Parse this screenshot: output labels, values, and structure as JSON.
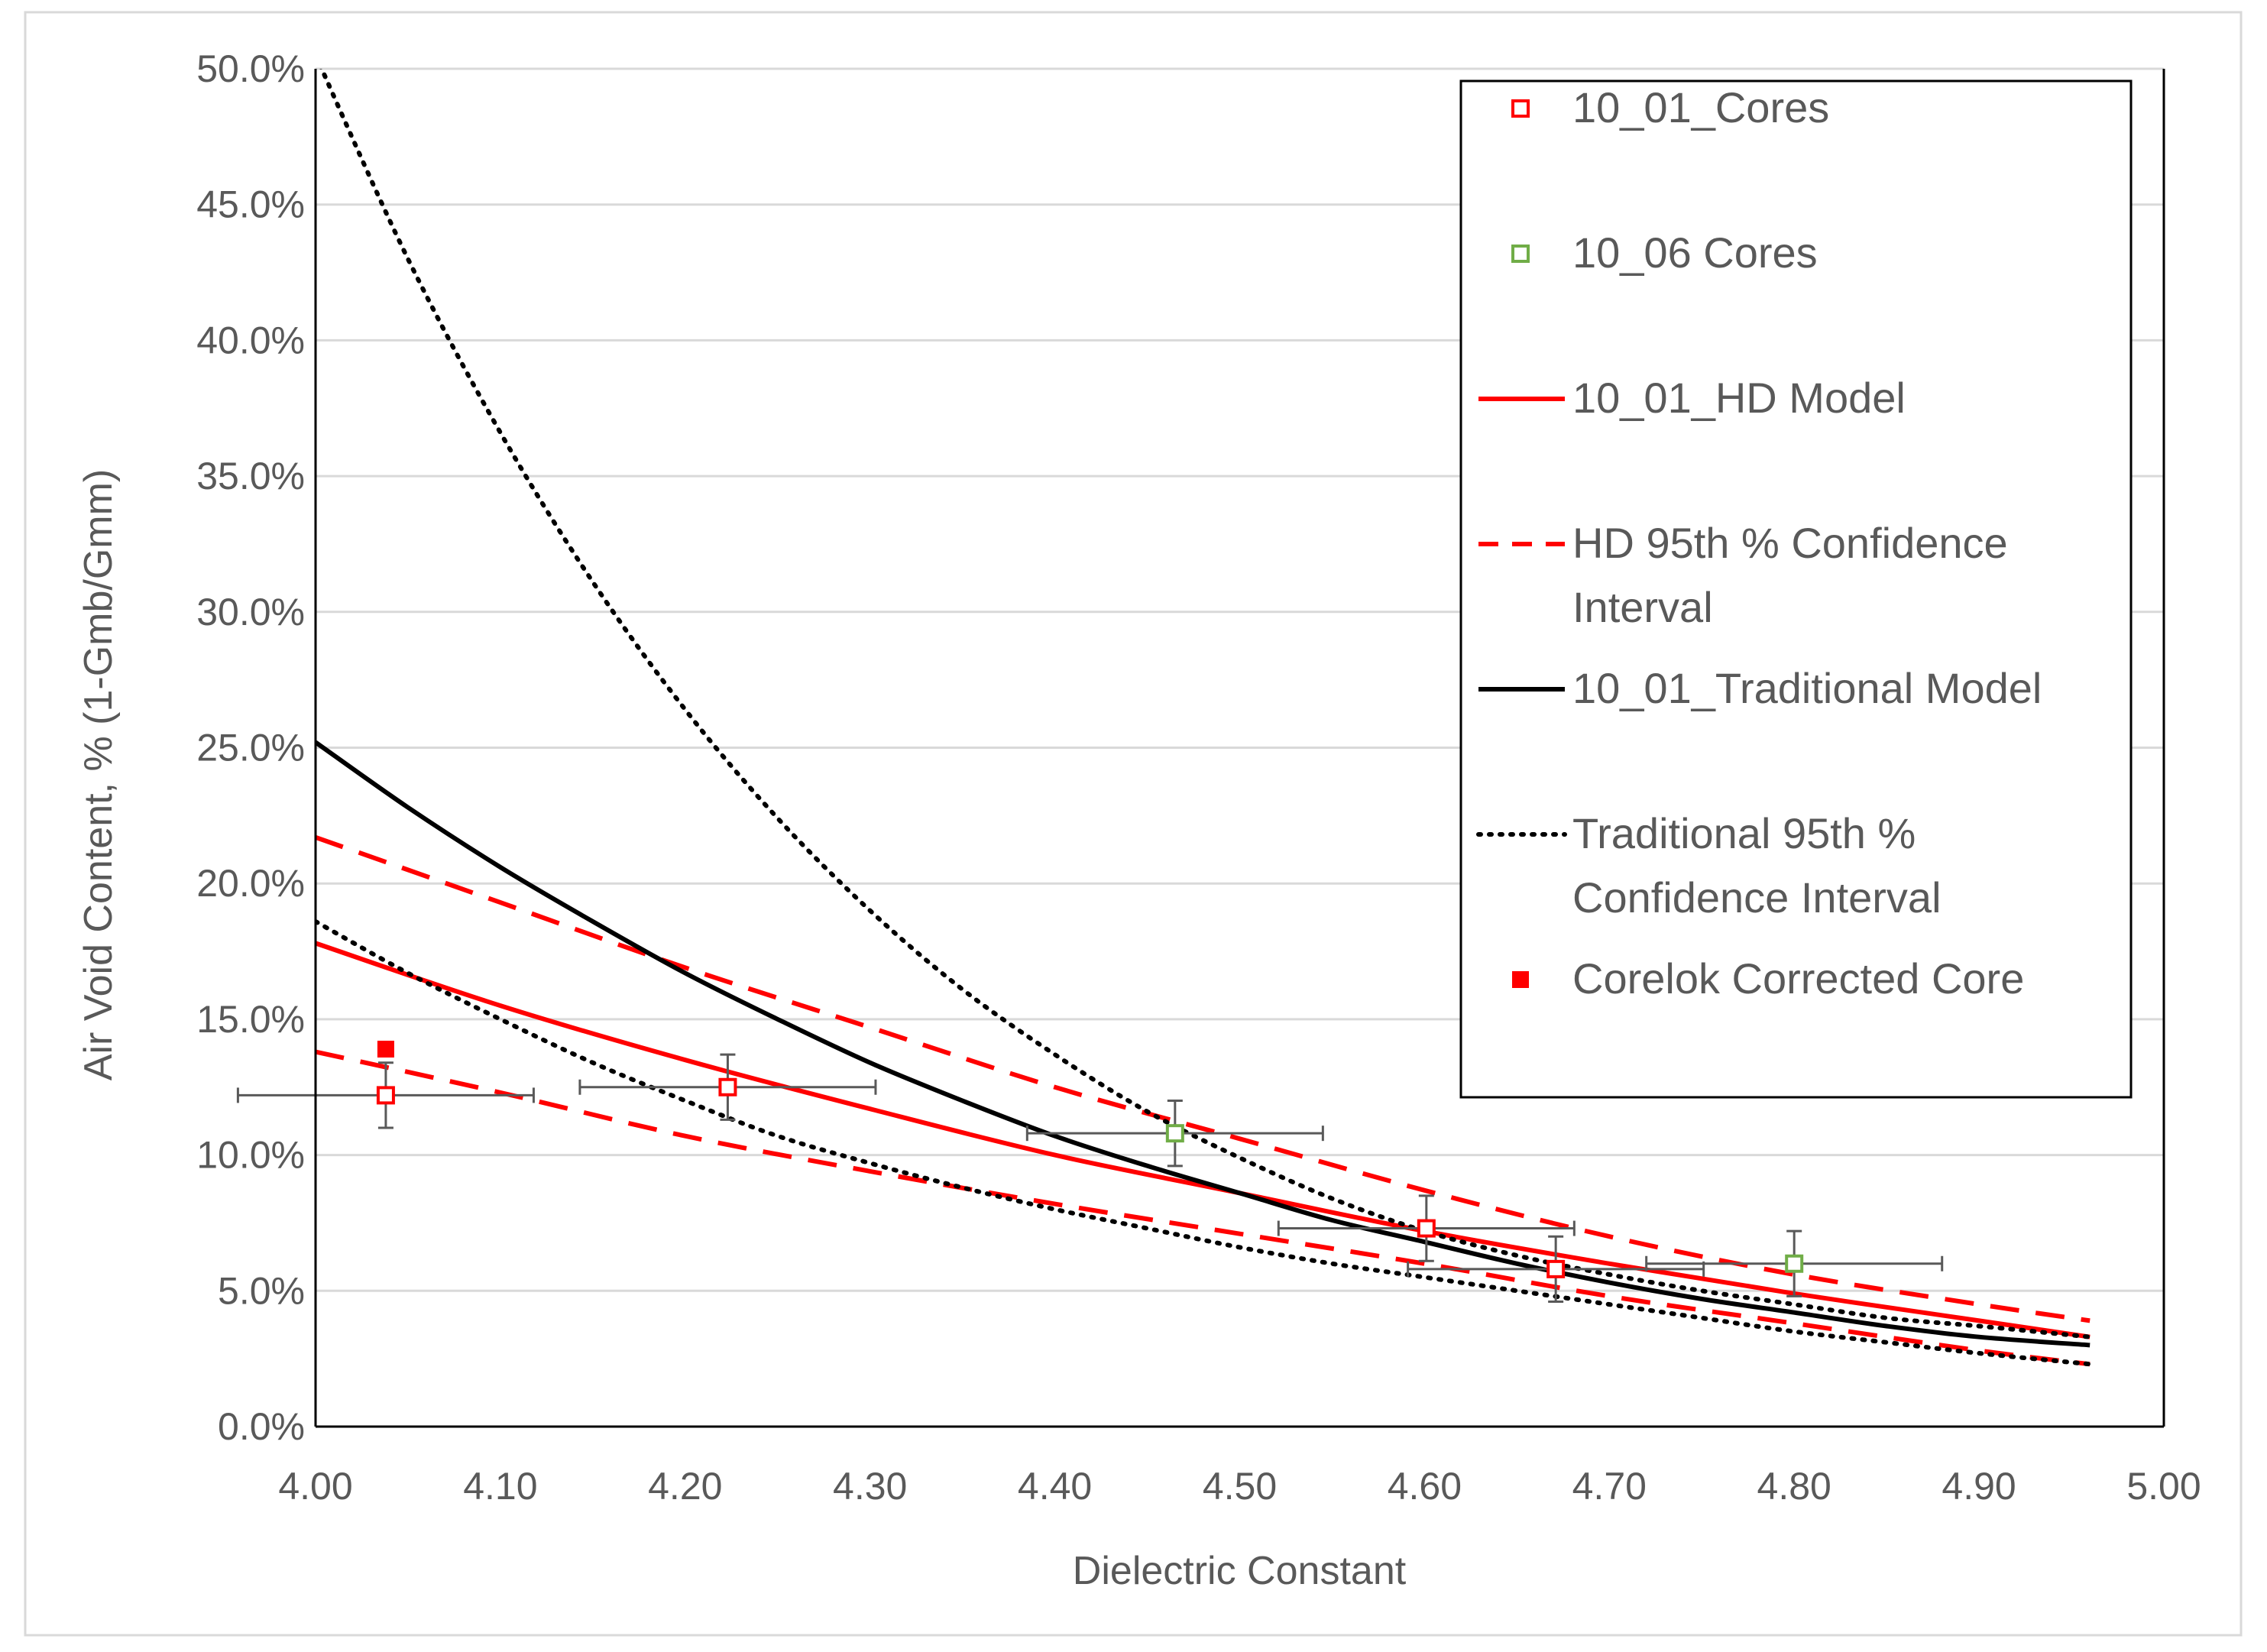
{
  "chart_data": {
    "type": "scatter",
    "title": "",
    "xlabel": "Dielectric Constant",
    "ylabel": "Air Void Content, % (1-Gmb/Gmm)",
    "xlim": [
      4.0,
      5.0
    ],
    "ylim": [
      0.0,
      0.5
    ],
    "x_ticks": [
      4.0,
      4.1,
      4.2,
      4.3,
      4.4,
      4.5,
      4.6,
      4.7,
      4.8,
      4.9,
      5.0
    ],
    "x_tick_labels": [
      "4.00",
      "4.10",
      "4.20",
      "4.30",
      "4.40",
      "4.50",
      "4.60",
      "4.70",
      "4.80",
      "4.90",
      "5.00"
    ],
    "y_ticks": [
      0.0,
      0.05,
      0.1,
      0.15,
      0.2,
      0.25,
      0.3,
      0.35,
      0.4,
      0.45,
      0.5
    ],
    "y_tick_labels": [
      "0.0%",
      "5.0%",
      "10.0%",
      "15.0%",
      "20.0%",
      "25.0%",
      "30.0%",
      "35.0%",
      "40.0%",
      "45.0%",
      "50.0%"
    ],
    "grid": true,
    "legend_position": "top-right",
    "colors": {
      "red": "#ff0000",
      "green": "#70ad47",
      "black": "#000000",
      "grid": "#d9d9d9",
      "errorbar": "#595959"
    },
    "series": [
      {
        "name": "10_01_Cores",
        "kind": "points",
        "marker": "open-square",
        "color": "#ff0000",
        "points": [
          {
            "x": 4.038,
            "y": 0.122,
            "xerr": 0.08,
            "yerr": 0.012
          },
          {
            "x": 4.223,
            "y": 0.125,
            "xerr": 0.08,
            "yerr": 0.012
          },
          {
            "x": 4.601,
            "y": 0.073,
            "xerr": 0.08,
            "yerr": 0.012
          },
          {
            "x": 4.671,
            "y": 0.058,
            "xerr": 0.08,
            "yerr": 0.012
          }
        ]
      },
      {
        "name": "10_06 Cores",
        "kind": "points",
        "marker": "open-square",
        "color": "#70ad47",
        "points": [
          {
            "x": 4.465,
            "y": 0.108,
            "xerr": 0.08,
            "yerr": 0.012
          },
          {
            "x": 4.8,
            "y": 0.06,
            "xerr": 0.08,
            "yerr": 0.012
          }
        ]
      },
      {
        "name": "10_01_HD Model",
        "kind": "line",
        "style": "solid",
        "color": "#ff0000",
        "x": [
          4.0,
          4.1,
          4.2,
          4.3,
          4.4,
          4.5,
          4.6,
          4.7,
          4.8,
          4.9,
          4.96
        ],
        "y": [
          0.178,
          0.155,
          0.135,
          0.117,
          0.1,
          0.086,
          0.072,
          0.06,
          0.049,
          0.039,
          0.033
        ]
      },
      {
        "name": "HD 95th % Confidence Interval",
        "kind": "band",
        "style": "dashed",
        "color": "#ff0000",
        "x": [
          4.0,
          4.1,
          4.2,
          4.3,
          4.4,
          4.5,
          4.6,
          4.7,
          4.8,
          4.9,
          4.96
        ],
        "upper": [
          0.217,
          0.193,
          0.169,
          0.147,
          0.125,
          0.106,
          0.087,
          0.07,
          0.056,
          0.045,
          0.039
        ],
        "lower": [
          0.138,
          0.123,
          0.107,
          0.094,
          0.082,
          0.071,
          0.06,
          0.048,
          0.038,
          0.028,
          0.023
        ]
      },
      {
        "name": "10_01_Traditional Model",
        "kind": "line",
        "style": "solid",
        "color": "#000000",
        "x": [
          4.0,
          4.05,
          4.1,
          4.15,
          4.2,
          4.25,
          4.3,
          4.35,
          4.4,
          4.45,
          4.5,
          4.55,
          4.6,
          4.65,
          4.7,
          4.75,
          4.8,
          4.85,
          4.9,
          4.96
        ],
        "y": [
          0.252,
          0.228,
          0.206,
          0.186,
          0.167,
          0.15,
          0.134,
          0.12,
          0.107,
          0.096,
          0.086,
          0.076,
          0.068,
          0.06,
          0.053,
          0.047,
          0.042,
          0.037,
          0.033,
          0.03
        ]
      },
      {
        "name": "Traditional 95th % Confidence Interval",
        "kind": "band",
        "style": "dotted",
        "color": "#000000",
        "x": [
          4.0,
          4.05,
          4.1,
          4.15,
          4.2,
          4.25,
          4.3,
          4.35,
          4.4,
          4.45,
          4.5,
          4.55,
          4.6,
          4.65,
          4.7,
          4.75,
          4.8,
          4.85,
          4.9,
          4.96
        ],
        "upper": [
          0.505,
          0.43,
          0.366,
          0.311,
          0.264,
          0.224,
          0.19,
          0.161,
          0.137,
          0.116,
          0.099,
          0.084,
          0.072,
          0.063,
          0.056,
          0.05,
          0.045,
          0.04,
          0.037,
          0.033
        ],
        "lower": [
          0.186,
          0.167,
          0.15,
          0.134,
          0.12,
          0.107,
          0.097,
          0.088,
          0.08,
          0.073,
          0.066,
          0.06,
          0.055,
          0.05,
          0.045,
          0.04,
          0.035,
          0.031,
          0.027,
          0.023
        ]
      },
      {
        "name": "Corelok Corrected Core",
        "kind": "points",
        "marker": "filled-square",
        "color": "#ff0000",
        "points": [
          {
            "x": 4.038,
            "y": 0.139
          }
        ]
      }
    ],
    "legend": [
      {
        "label": "10_01_Cores",
        "symbol": "open-square",
        "color": "#ff0000"
      },
      {
        "label": "10_06 Cores",
        "symbol": "open-square",
        "color": "#70ad47"
      },
      {
        "label": "10_01_HD Model",
        "symbol": "solid-line",
        "color": "#ff0000"
      },
      {
        "label": "HD 95th % Confidence Interval",
        "lines": [
          "HD 95th % Confidence",
          "Interval"
        ],
        "symbol": "dashed-line",
        "color": "#ff0000"
      },
      {
        "label": "10_01_Traditional Model",
        "symbol": "solid-line",
        "color": "#000000"
      },
      {
        "label": "Traditional 95th % Confidence Interval",
        "lines": [
          "Traditional 95th %",
          "Confidence Interval"
        ],
        "symbol": "dotted-line",
        "color": "#000000"
      },
      {
        "label": "Corelok Corrected Core",
        "symbol": "filled-square",
        "color": "#ff0000"
      }
    ]
  }
}
